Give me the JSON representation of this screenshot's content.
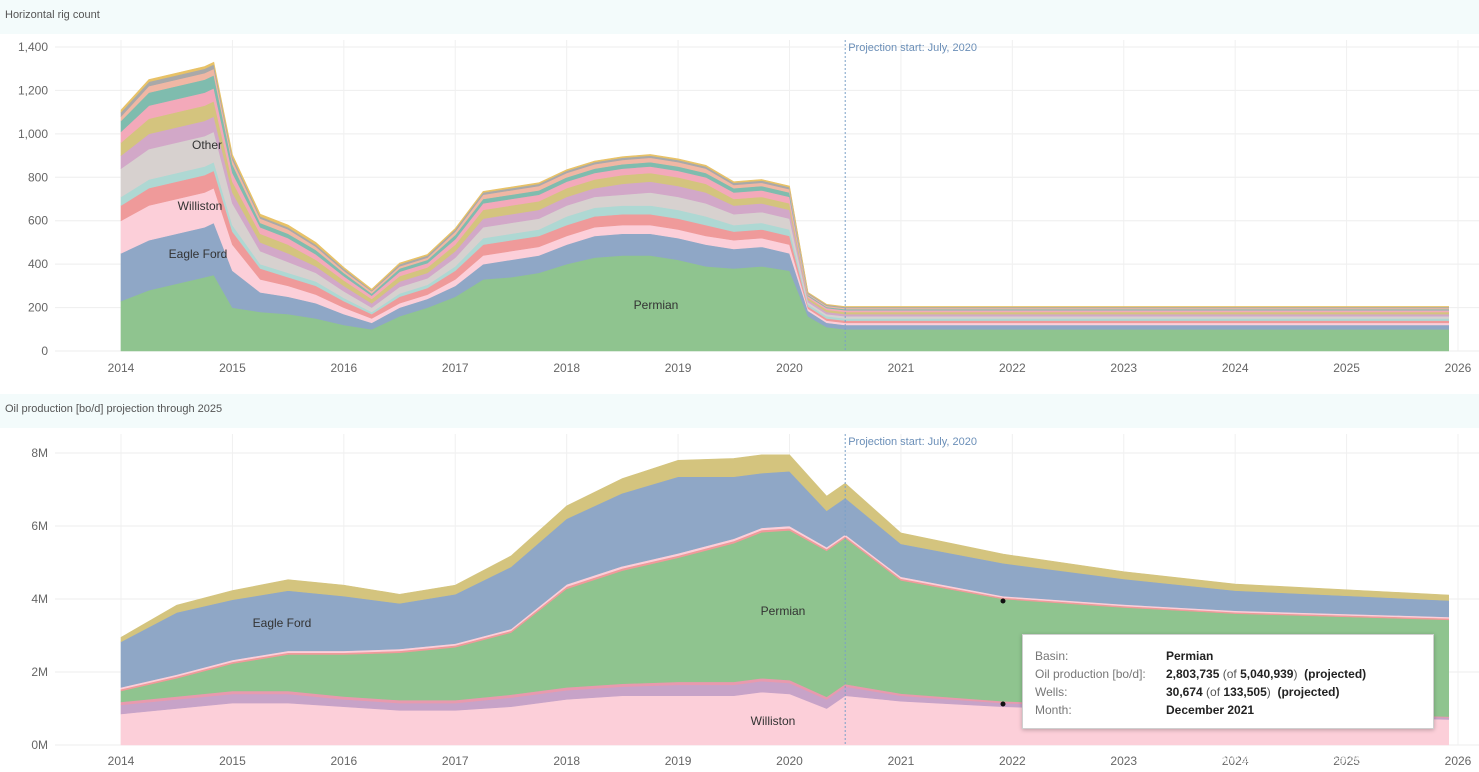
{
  "chart_data": [
    {
      "type": "area",
      "stacked": true,
      "title": "Horizontal rig count",
      "x": [
        "2014-01",
        "2014-04",
        "2014-07",
        "2014-10",
        "2014-11",
        "2015-01",
        "2015-04",
        "2015-07",
        "2015-10",
        "2016-01",
        "2016-04",
        "2016-07",
        "2016-10",
        "2017-01",
        "2017-04",
        "2017-07",
        "2017-10",
        "2018-01",
        "2018-04",
        "2018-07",
        "2018-10",
        "2019-01",
        "2019-04",
        "2019-07",
        "2019-10",
        "2020-01",
        "2020-03",
        "2020-05",
        "2020-07",
        "2021-01",
        "2022-01",
        "2023-01",
        "2024-01",
        "2025-01",
        "2025-12"
      ],
      "xticks": [
        "2014",
        "2015",
        "2016",
        "2017",
        "2018",
        "2019",
        "2020",
        "2021",
        "2022",
        "2023",
        "2024",
        "2025",
        "2026"
      ],
      "yticks": [
        "0",
        "200",
        "400",
        "600",
        "800",
        "1,000",
        "1,200",
        "1,400"
      ],
      "ylim": [
        0,
        1400
      ],
      "projection_label": "Projection start: July, 2020",
      "projection_start": "2020-07",
      "series": [
        {
          "name": "Permian",
          "color": "#8fc48f",
          "values": [
            230,
            280,
            310,
            340,
            350,
            200,
            180,
            170,
            150,
            120,
            100,
            160,
            200,
            250,
            330,
            340,
            360,
            400,
            430,
            440,
            440,
            420,
            390,
            380,
            390,
            370,
            160,
            110,
            100,
            100,
            100,
            100,
            100,
            100,
            100
          ]
        },
        {
          "name": "Eagle Ford",
          "color": "#8fa7c6",
          "values": [
            220,
            230,
            230,
            230,
            240,
            170,
            90,
            80,
            70,
            50,
            30,
            40,
            40,
            50,
            70,
            80,
            80,
            90,
            100,
            100,
            100,
            100,
            100,
            90,
            90,
            80,
            25,
            20,
            20,
            20,
            20,
            20,
            20,
            20,
            20
          ]
        },
        {
          "name": "Williston",
          "color": "#fccfd9",
          "values": [
            150,
            160,
            160,
            160,
            160,
            120,
            60,
            50,
            40,
            30,
            20,
            20,
            20,
            30,
            40,
            40,
            40,
            40,
            40,
            40,
            40,
            40,
            40,
            40,
            40,
            40,
            10,
            10,
            10,
            10,
            10,
            10,
            10,
            10,
            10
          ]
        },
        {
          "name": "",
          "color": "#ef9a9a",
          "values": [
            70,
            80,
            80,
            80,
            80,
            60,
            50,
            40,
            40,
            30,
            20,
            30,
            30,
            40,
            50,
            50,
            50,
            50,
            50,
            50,
            50,
            50,
            50,
            40,
            40,
            40,
            10,
            10,
            10,
            10,
            10,
            10,
            10,
            10,
            10
          ]
        },
        {
          "name": "",
          "color": "#aed8d3",
          "values": [
            40,
            40,
            40,
            40,
            40,
            30,
            20,
            20,
            20,
            15,
            10,
            15,
            15,
            20,
            30,
            30,
            30,
            40,
            40,
            40,
            40,
            40,
            40,
            30,
            30,
            30,
            10,
            10,
            10,
            10,
            10,
            10,
            10,
            10,
            10
          ]
        },
        {
          "name": "Other",
          "color": "#d7d1cf",
          "values": [
            130,
            140,
            140,
            140,
            140,
            100,
            60,
            50,
            40,
            30,
            20,
            30,
            30,
            40,
            50,
            50,
            50,
            50,
            50,
            50,
            60,
            60,
            60,
            50,
            50,
            50,
            10,
            10,
            10,
            10,
            10,
            10,
            10,
            10,
            10
          ]
        },
        {
          "name": "",
          "color": "#d2a8c8",
          "values": [
            60,
            70,
            70,
            70,
            70,
            50,
            40,
            40,
            30,
            25,
            20,
            25,
            25,
            30,
            40,
            40,
            40,
            40,
            40,
            50,
            50,
            50,
            50,
            40,
            40,
            40,
            10,
            10,
            10,
            10,
            10,
            10,
            10,
            10,
            10
          ]
        },
        {
          "name": "",
          "color": "#d4c47e",
          "values": [
            60,
            70,
            70,
            70,
            70,
            50,
            40,
            40,
            30,
            25,
            20,
            25,
            25,
            30,
            40,
            40,
            40,
            40,
            40,
            40,
            40,
            40,
            40,
            30,
            30,
            30,
            10,
            10,
            10,
            10,
            10,
            10,
            10,
            10,
            10
          ]
        },
        {
          "name": "",
          "color": "#f3a9ba",
          "values": [
            50,
            60,
            60,
            60,
            60,
            40,
            30,
            30,
            25,
            20,
            15,
            20,
            20,
            25,
            30,
            30,
            30,
            30,
            30,
            30,
            30,
            30,
            30,
            30,
            30,
            30,
            8,
            8,
            8,
            8,
            8,
            8,
            8,
            8,
            8
          ]
        },
        {
          "name": "",
          "color": "#7fbcae",
          "values": [
            50,
            60,
            60,
            60,
            60,
            40,
            20,
            20,
            20,
            15,
            10,
            15,
            15,
            20,
            20,
            20,
            20,
            20,
            20,
            20,
            20,
            20,
            20,
            20,
            20,
            20,
            5,
            5,
            5,
            5,
            5,
            5,
            5,
            5,
            5
          ]
        },
        {
          "name": "",
          "color": "#f0b7a4",
          "values": [
            20,
            30,
            30,
            30,
            30,
            20,
            20,
            20,
            15,
            10,
            10,
            10,
            10,
            15,
            20,
            20,
            20,
            20,
            20,
            20,
            20,
            20,
            20,
            15,
            15,
            15,
            5,
            5,
            5,
            5,
            5,
            5,
            5,
            5,
            5
          ]
        },
        {
          "name": "",
          "color": "#a9a9a9",
          "values": [
            20,
            20,
            20,
            20,
            20,
            15,
            10,
            10,
            10,
            10,
            5,
            10,
            10,
            10,
            10,
            10,
            10,
            10,
            10,
            10,
            10,
            10,
            10,
            10,
            10,
            10,
            5,
            5,
            5,
            5,
            5,
            5,
            5,
            5,
            5
          ]
        },
        {
          "name": "",
          "color": "#e8c267",
          "values": [
            10,
            10,
            10,
            10,
            10,
            10,
            10,
            10,
            10,
            5,
            5,
            5,
            5,
            5,
            5,
            5,
            5,
            5,
            5,
            5,
            5,
            5,
            5,
            5,
            5,
            5,
            2,
            2,
            2,
            2,
            2,
            2,
            2,
            2,
            2
          ]
        }
      ]
    },
    {
      "type": "area",
      "stacked": true,
      "title": "Oil production [bo/d] projection through 2025",
      "x": [
        "2014-01",
        "2014-07",
        "2015-01",
        "2015-07",
        "2016-01",
        "2016-07",
        "2017-01",
        "2017-07",
        "2018-01",
        "2018-07",
        "2019-01",
        "2019-07",
        "2019-10",
        "2020-01",
        "2020-05",
        "2020-07",
        "2021-01",
        "2021-12",
        "2023-01",
        "2024-01",
        "2025-12"
      ],
      "xticks": [
        "2014",
        "2015",
        "2016",
        "2017",
        "2018",
        "2019",
        "2020",
        "2021",
        "2022",
        "2023",
        "2024",
        "2025",
        "2026"
      ],
      "yticks": [
        "0M",
        "2M",
        "4M",
        "6M",
        "8M"
      ],
      "ylim": [
        0,
        8500000
      ],
      "projection_label": "Projection start: July, 2020",
      "projection_start": "2020-07",
      "series": [
        {
          "name": "Williston",
          "color": "#fccfd9",
          "values": [
            850000,
            1000000,
            1150000,
            1150000,
            1050000,
            950000,
            950000,
            1050000,
            1250000,
            1350000,
            1350000,
            1350000,
            1450000,
            1400000,
            1000000,
            1350000,
            1200000,
            1050000,
            950000,
            850000,
            700000
          ]
        },
        {
          "name": "",
          "color": "#c7a3c8",
          "values": [
            250000,
            250000,
            250000,
            250000,
            200000,
            200000,
            200000,
            250000,
            250000,
            250000,
            300000,
            300000,
            300000,
            300000,
            250000,
            250000,
            150000,
            100000,
            80000,
            60000,
            50000
          ]
        },
        {
          "name": "",
          "color": "#e89aae",
          "values": [
            80000,
            80000,
            80000,
            80000,
            80000,
            80000,
            80000,
            80000,
            80000,
            80000,
            80000,
            80000,
            80000,
            80000,
            70000,
            70000,
            60000,
            50000,
            40000,
            40000,
            30000
          ]
        },
        {
          "name": "Permian",
          "color": "#8fc48f",
          "values": [
            300000,
            500000,
            750000,
            1000000,
            1150000,
            1300000,
            1450000,
            1700000,
            2700000,
            3100000,
            3400000,
            3800000,
            4000000,
            4100000,
            4000000,
            4000000,
            3100000,
            2800000,
            2700000,
            2650000,
            2650000
          ]
        },
        {
          "name": "",
          "color": "#ef9a9a",
          "values": [
            50000,
            50000,
            50000,
            50000,
            50000,
            50000,
            50000,
            50000,
            60000,
            60000,
            60000,
            60000,
            60000,
            60000,
            50000,
            50000,
            50000,
            40000,
            40000,
            40000,
            40000
          ]
        },
        {
          "name": "",
          "color": "#fccfd9",
          "values": [
            50000,
            50000,
            50000,
            50000,
            50000,
            50000,
            50000,
            50000,
            60000,
            60000,
            60000,
            60000,
            60000,
            60000,
            50000,
            50000,
            50000,
            40000,
            40000,
            40000,
            40000
          ]
        },
        {
          "name": "Eagle Ford",
          "color": "#8fa7c6",
          "values": [
            1250000,
            1700000,
            1650000,
            1650000,
            1500000,
            1250000,
            1350000,
            1700000,
            1800000,
            2000000,
            2100000,
            1700000,
            1500000,
            1500000,
            1000000,
            1000000,
            900000,
            900000,
            700000,
            550000,
            450000
          ]
        },
        {
          "name": "",
          "color": "#d4c47e",
          "values": [
            120000,
            200000,
            250000,
            300000,
            300000,
            250000,
            250000,
            300000,
            350000,
            400000,
            450000,
            500000,
            500000,
            450000,
            400000,
            400000,
            300000,
            250000,
            200000,
            180000,
            150000
          ]
        }
      ]
    }
  ],
  "panels": {
    "top_title": "Horizontal rig count",
    "bottom_title": "Oil production [bo/d] projection through 2025"
  },
  "labels": {
    "top_other": "Other",
    "top_williston": "Williston",
    "top_eagle_ford": "Eagle Ford",
    "top_permian": "Permian",
    "bottom_eagle_ford": "Eagle Ford",
    "bottom_permian": "Permian",
    "bottom_williston": "Williston"
  },
  "tooltip": {
    "basin_key": "Basin:",
    "basin_val": "Permian",
    "oil_key": "Oil production [bo/d]:",
    "oil_val": "2,803,735",
    "oil_of": "(of",
    "oil_total": "5,040,939",
    "oil_close": ")",
    "oil_note": "(projected)",
    "wells_key": "Wells:",
    "wells_val": "30,674",
    "wells_of": "(of",
    "wells_total": "133,505",
    "wells_close": ")",
    "wells_note": "(projected)",
    "month_key": "Month:",
    "month_val": "December 2021"
  },
  "watermark": "www.eafxw.com EA分享网"
}
